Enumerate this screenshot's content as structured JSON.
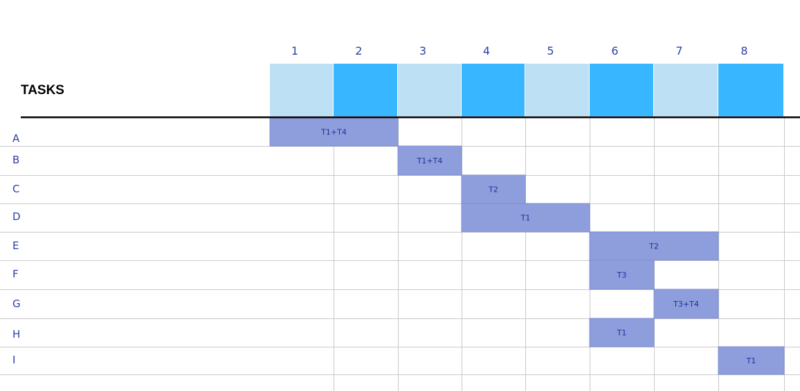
{
  "chart_data": {
    "type": "gantt",
    "header_label": "TASKS",
    "columns": [
      "1",
      "2",
      "3",
      "4",
      "5",
      "6",
      "7",
      "8"
    ],
    "header_colors": [
      "#bde0f4",
      "#38b6ff",
      "#bde0f4",
      "#38b6ff",
      "#bde0f4",
      "#38b6ff",
      "#bde0f4",
      "#38b6ff"
    ],
    "bar_color": "#8e9ddb",
    "grid_color": "#c8c8c8",
    "text_color": "#2d3fa8",
    "tasks": [
      {
        "name": "A",
        "start": 1,
        "end": 2,
        "label": "T1+T4"
      },
      {
        "name": "B",
        "start": 3,
        "end": 3,
        "label": "T1+T4"
      },
      {
        "name": "C",
        "start": 4,
        "end": 4,
        "label": "T2"
      },
      {
        "name": "D",
        "start": 4,
        "end": 5,
        "label": "T1"
      },
      {
        "name": "E",
        "start": 6,
        "end": 7,
        "label": "T2"
      },
      {
        "name": "F",
        "start": 6,
        "end": 6,
        "label": "T3"
      },
      {
        "name": "G",
        "start": 7,
        "end": 7,
        "label": "T3+T4"
      },
      {
        "name": "H",
        "start": 6,
        "end": 6,
        "label": "T1"
      },
      {
        "name": "I",
        "start": 8,
        "end": 8,
        "label": "T1"
      }
    ]
  }
}
